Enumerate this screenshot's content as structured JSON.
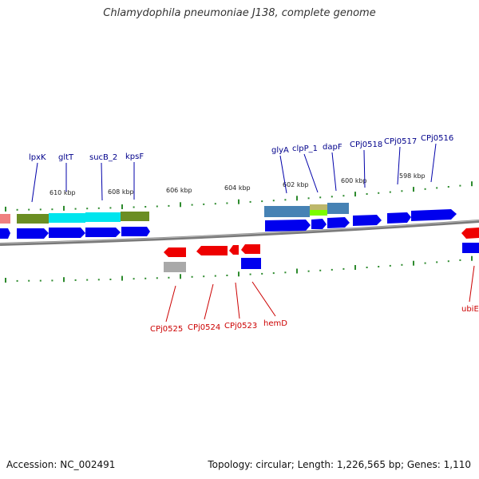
{
  "title": "Chlamydophila pneumoniae J138, complete genome",
  "accession": "Accession: NC_002491",
  "topology": "Topology: circular; Length: 1,226,565 bp; Genes: 1,110",
  "scale_labels": [
    "610 kbp",
    "608 kbp",
    "606 kbp",
    "604 kbp",
    "602 kbp",
    "600 kbp",
    "598 kbp"
  ],
  "forward_genes": [
    "lpxK",
    "gltT",
    "sucB_2",
    "kpsF",
    "glyA",
    "clpP_1",
    "dapF",
    "CPj0518",
    "CPj0517",
    "CPj0516"
  ],
  "reverse_genes": [
    "CPj0525",
    "CPj0524",
    "CPj0523",
    "hemD",
    "ubiE"
  ],
  "colors": {
    "forward_gene": "#0000ee",
    "reverse_gene": "#ee0000",
    "forward_label": "#00008b",
    "reverse_label": "#cc0000",
    "tick": "#2e8b2e",
    "backbone": "#808080",
    "cog_olive": "#6b8e23",
    "cog_cyan": "#00e5ee",
    "cog_steel": "#4682b4",
    "cog_khaki": "#bdb76b",
    "cog_lime": "#7cfc00",
    "cog_grey": "#a9a9a9",
    "cog_pink": "#f08080"
  }
}
